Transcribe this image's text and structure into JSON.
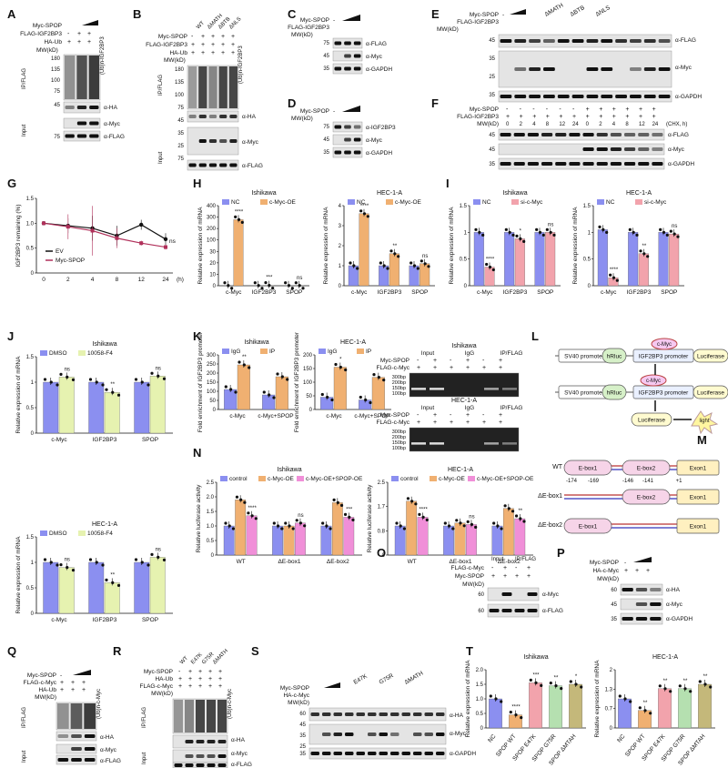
{
  "panels": {
    "A": {
      "letter": "A",
      "rows": [
        "Myc-SPOP",
        "FLAG-IGF2BP3",
        "HA-Ub"
      ],
      "lanes": [
        [
          "-",
          "+",
          "+"
        ],
        [
          "+",
          "+",
          "+"
        ]
      ],
      "mw": [
        "180",
        "135",
        "100",
        "75",
        "45",
        "75"
      ],
      "side": [
        "IP/FLAG",
        "Input"
      ],
      "bands": [
        "(Ub)n-IGF2BP3",
        "α-HA",
        "α-Myc",
        "α-FLAG"
      ],
      "mwhead": "MW(kD)"
    },
    "B": {
      "letter": "B",
      "rows": [
        "Myc-SPOP",
        "FLAG-IGF2BP3",
        "HA-Ub"
      ],
      "variants": [
        "WT",
        "ΔMATH",
        "ΔBTB",
        "ΔNLS"
      ],
      "lanes": [
        [
          "-",
          "+",
          "+",
          "+",
          "+"
        ],
        [
          "+",
          "+",
          "+",
          "+",
          "+"
        ],
        [
          "+",
          "+",
          "+",
          "+",
          "+"
        ]
      ],
      "mw": [
        "180",
        "135",
        "100",
        "75",
        "45",
        "35",
        "25",
        "75"
      ],
      "side": [
        "IP/FLAG",
        "Input"
      ],
      "bands": [
        "(Ub)n-IGF2BP3",
        "α-HA",
        "α-Myc",
        "α-FLAG"
      ],
      "mwhead": "MW(kD)"
    },
    "C": {
      "letter": "C",
      "rows": [
        "Myc-SPOP",
        "FLAG-IGF2BP3"
      ],
      "mw": [
        "75",
        "45",
        "35"
      ],
      "bands": [
        "α-FLAG",
        "α-Myc",
        "α-GAPDH"
      ],
      "mwhead": "MW(kD)",
      "dash": "-"
    },
    "D": {
      "letter": "D",
      "rows": [
        "Myc-SPOP"
      ],
      "mw": [
        "75",
        "45",
        "35"
      ],
      "bands": [
        "α-IGF2BP3",
        "α-Myc",
        "α-GAPDH"
      ],
      "mwhead": "MW(kD)",
      "dash": "-"
    },
    "E": {
      "letter": "E",
      "rows": [
        "Myc-SPOP",
        "FLAG-IGF2BP3"
      ],
      "variants": [
        "ΔMATH",
        "ΔBTB",
        "ΔNLS"
      ],
      "mw": [
        "45",
        "35",
        "25",
        "35"
      ],
      "bands": [
        "α-FLAG",
        "α-Myc",
        "α-GAPDH"
      ],
      "mwhead": "MW(kD)",
      "dash": "-"
    },
    "F": {
      "letter": "F",
      "rows": [
        "Myc-SPOP",
        "FLAG-IGF2BP3",
        "MW(kD)"
      ],
      "times": [
        "0",
        "2",
        "4",
        "8",
        "12",
        "24",
        "0",
        "2",
        "4",
        "8",
        "12",
        "24"
      ],
      "chx": "(CHX, h)",
      "mw": [
        "45",
        "45",
        "35"
      ],
      "bands": [
        "α-FLAG",
        "α-Myc",
        "α-GAPDH"
      ]
    },
    "G": {
      "letter": "G",
      "ylabel": "IGF2BP3 remaining (%)",
      "xunit": "(h)",
      "ns": "ns"
    },
    "H": {
      "letter": "H"
    },
    "I": {
      "letter": "I"
    },
    "J": {
      "letter": "J"
    },
    "K": {
      "letter": "K",
      "gel_rows": [
        "Myc-SPOP",
        "FLAG-c-Myc"
      ],
      "gel_heads": [
        "Input",
        "IgG",
        "IP/FLAG"
      ],
      "gel_mw": [
        "300bp",
        "200bp",
        "150bp",
        "100bp"
      ],
      "gel_titles": [
        "Ishikawa",
        "HEC-1-A"
      ]
    },
    "L": {
      "letter": "L",
      "boxes": [
        "SV40 promoter",
        "hRluc",
        "IGF2BP3 promoter",
        "Luciferase",
        "SV40 promoter",
        "hRluc",
        "IGF2BP3 promoter",
        "Luciferase",
        "Luciferase"
      ],
      "cmyc": "c-Myc",
      "light": "light"
    },
    "M": {
      "letter": "M",
      "rows": [
        "WT",
        "ΔE-box1",
        "ΔE-box2"
      ],
      "boxes": [
        "E-box1",
        "E-box2",
        "Exon1"
      ],
      "positions": [
        "-174",
        "-169",
        "-146",
        "-141",
        "+1"
      ]
    },
    "N": {
      "letter": "N"
    },
    "O": {
      "letter": "O",
      "rows": [
        "FLAG-c-Myc",
        "Myc-SPOP",
        "MW(kD)"
      ],
      "heads": [
        "Input",
        "IP/FLAG"
      ],
      "lanes": [
        [
          "-",
          "+",
          "-",
          "+"
        ],
        [
          "+",
          "+",
          "+",
          "+"
        ]
      ],
      "mw": [
        "60",
        "60"
      ],
      "bands": [
        "α-Myc",
        "α-FLAG"
      ]
    },
    "P": {
      "letter": "P",
      "rows": [
        "Myc-SPOP",
        "HA-c-Myc",
        "MW(kD)"
      ],
      "mw": [
        "60",
        "45",
        "35"
      ],
      "bands": [
        "α-HA",
        "α-Myc",
        "α-GAPDH"
      ],
      "dash": "-"
    },
    "Q": {
      "letter": "Q",
      "rows": [
        "Myc-SPOP",
        "FLAG-c-Myc",
        "HA-Ub",
        "MW(kD)"
      ],
      "mw": [
        "180",
        "135",
        "100",
        "75",
        "45",
        "60"
      ],
      "side": [
        "IP/FLAG",
        "Input"
      ],
      "bands": [
        "(Ub)n-c-Myc",
        "α-HA",
        "α-Myc",
        "α-FLAG"
      ],
      "dash": "-"
    },
    "R": {
      "letter": "R",
      "rows": [
        "Myc-SPOP",
        "HA-Ub",
        "FLAG-c-Myc",
        "MW(kD)"
      ],
      "variants": [
        "WT",
        "E47K",
        "G75R",
        "ΔMATH"
      ],
      "mw": [
        "180",
        "135",
        "100",
        "75",
        "45",
        "35",
        "25",
        "60"
      ],
      "side": [
        "IP/FLAG",
        "Input"
      ],
      "bands": [
        "(Ub)n-c-Myc",
        "α-HA",
        "α-Myc",
        "α-FLAG"
      ]
    },
    "S": {
      "letter": "S",
      "rows": [
        "Myc-SPOP",
        "HA-c-Myc",
        "MW(kD)"
      ],
      "variants": [
        "E47K",
        "G75R",
        "ΔMATH"
      ],
      "mw": [
        "60",
        "45",
        "35",
        "25",
        "35"
      ],
      "bands": [
        "α-HA",
        "α-Myc",
        "α-GAPDH"
      ]
    },
    "T": {
      "letter": "T"
    }
  },
  "chart_data": [
    {
      "id": "G",
      "type": "line",
      "x": [
        0,
        2,
        4,
        8,
        12,
        24
      ],
      "xlabel": "(h)",
      "ylabel": "IGF2BP3 remaining (%)",
      "ylim": [
        0,
        1.5
      ],
      "yticks": [
        "0",
        "0.5",
        "1.0",
        "1.5"
      ],
      "series": [
        {
          "name": "EV",
          "values": [
            1.0,
            0.95,
            0.9,
            0.75,
            0.97,
            0.68
          ],
          "err": [
            0,
            0.15,
            0.25,
            0.2,
            0.1,
            0.12
          ],
          "color": "#111111"
        },
        {
          "name": "Myc-SPOP",
          "values": [
            1.0,
            0.93,
            0.85,
            0.7,
            0.6,
            0.52
          ],
          "err": [
            0,
            0.25,
            0.5,
            0.2,
            0.05,
            0.05
          ],
          "color": "#b0305a"
        }
      ],
      "annot": "ns"
    },
    {
      "id": "H1",
      "type": "bar",
      "title": "Ishikawa",
      "ylabel": "Relative expression of mRNA",
      "categories": [
        "c-Myc",
        "IGF2BP3",
        "SPOP"
      ],
      "ylim": [
        0,
        400
      ],
      "yticks": [
        "0",
        "10",
        "20",
        "30",
        "100",
        "200",
        "300",
        "400"
      ],
      "series": [
        {
          "name": "NC",
          "values": [
            1.0,
            1.0,
            1.0
          ],
          "color": "#8b8ff0"
        },
        {
          "name": "c-Myc-OE",
          "values": [
            330,
            1.6,
            1.0
          ],
          "color": "#f0b071"
        }
      ],
      "sig": [
        "****",
        "***",
        "ns"
      ]
    },
    {
      "id": "H2",
      "type": "bar",
      "title": "HEC-1-A",
      "ylabel": "Relative expression of mRNA",
      "categories": [
        "c-Myc",
        "IGF2BP3",
        "SPOP"
      ],
      "ylim": [
        0,
        4
      ],
      "series": [
        {
          "name": "NC",
          "values": [
            1.0,
            1.0,
            1.0
          ],
          "color": "#8b8ff0"
        },
        {
          "name": "c-Myc-OE",
          "values": [
            3.6,
            1.6,
            1.1
          ],
          "color": "#f0b071"
        }
      ],
      "sig": [
        "****",
        "**",
        "ns"
      ]
    },
    {
      "id": "I1",
      "type": "bar",
      "title": "Ishikawa",
      "ylabel": "Relative expression of mRNA",
      "categories": [
        "c-Myc",
        "IGF2BP3",
        "SPOP"
      ],
      "ylim": [
        0,
        1.5
      ],
      "series": [
        {
          "name": "NC",
          "values": [
            1.0,
            1.0,
            1.0
          ],
          "color": "#8b8ff0"
        },
        {
          "name": "si-c-Myc",
          "values": [
            0.35,
            0.88,
            1.0
          ],
          "color": "#f2a3ac"
        }
      ],
      "sig": [
        "****",
        "*",
        "ns"
      ]
    },
    {
      "id": "I2",
      "type": "bar",
      "title": "HEC-1-A",
      "ylabel": "Relative expression of mRNA",
      "categories": [
        "c-Myc",
        "IGF2BP3",
        "SPOP"
      ],
      "ylim": [
        0,
        1.5
      ],
      "series": [
        {
          "name": "NC",
          "values": [
            1.05,
            1.0,
            1.0
          ],
          "color": "#8b8ff0"
        },
        {
          "name": "si-c-Myc",
          "values": [
            0.15,
            0.6,
            0.97
          ],
          "color": "#f2a3ac"
        }
      ],
      "sig": [
        "****",
        "**",
        "ns"
      ]
    },
    {
      "id": "J1",
      "type": "bar",
      "title": "Ishikawa",
      "ylabel": "Relative expression of mRNA",
      "categories": [
        "c-Myc",
        "IGF2BP3",
        "SPOP"
      ],
      "ylim": [
        0,
        1.5
      ],
      "series": [
        {
          "name": "DMSO",
          "values": [
            1.0,
            1.0,
            1.0
          ],
          "color": "#8b8ff0"
        },
        {
          "name": "10058-F4",
          "values": [
            1.1,
            0.8,
            1.12
          ],
          "color": "#e6f2b0"
        }
      ],
      "sig": [
        "ns",
        "**",
        "ns"
      ]
    },
    {
      "id": "J2",
      "type": "bar",
      "title": "HEC-1-A",
      "ylabel": "Relative expression of mRNA",
      "categories": [
        "c-Myc",
        "IGF2BP3",
        "SPOP"
      ],
      "ylim": [
        0,
        1.5
      ],
      "series": [
        {
          "name": "DMSO",
          "values": [
            1.0,
            1.0,
            1.0
          ],
          "color": "#8b8ff0"
        },
        {
          "name": "10058-F4",
          "values": [
            0.9,
            0.6,
            1.1
          ],
          "color": "#e6f2b0"
        }
      ],
      "sig": [
        "ns",
        "**",
        "ns"
      ]
    },
    {
      "id": "K1",
      "type": "bar",
      "title": "Ishikawa",
      "ylabel": "Fold enrichment of IGF2BP3 promoter",
      "categories": [
        "c-Myc",
        "c-Myc+SPOP"
      ],
      "ylim": [
        0,
        300
      ],
      "yticks": [
        "0",
        "50",
        "100",
        "150",
        "200",
        "250",
        "300"
      ],
      "series": [
        {
          "name": "IgG",
          "values": [
            110,
            80
          ],
          "color": "#8b8ff0"
        },
        {
          "name": "IP",
          "values": [
            245,
            180
          ],
          "color": "#f0b071"
        }
      ],
      "sig": [
        "**"
      ]
    },
    {
      "id": "K2",
      "type": "bar",
      "title": "HEC-1-A",
      "ylabel": "Fold enrichment of IGF2BP3 promoter",
      "categories": [
        "c-Myc",
        "c-Myc+SPOP"
      ],
      "ylim": [
        0,
        200
      ],
      "yticks": [
        "0",
        "50",
        "100",
        "150",
        "200"
      ],
      "series": [
        {
          "name": "IgG",
          "values": [
            45,
            35
          ],
          "color": "#8b8ff0"
        },
        {
          "name": "IP",
          "values": [
            155,
            118
          ],
          "color": "#f0b071"
        }
      ],
      "sig": [
        "*"
      ]
    },
    {
      "id": "N1",
      "type": "bar",
      "title": "Ishikawa",
      "ylabel": "Relative luciferase activity",
      "categories": [
        "WT",
        "ΔE-box1",
        "ΔE-box2"
      ],
      "ylim": [
        0,
        2.5
      ],
      "yticks": [
        "0",
        "0.5",
        "1.0",
        "1.5",
        "2.0",
        "2.5"
      ],
      "series": [
        {
          "name": "control",
          "values": [
            1.0,
            1.0,
            1.0
          ],
          "color": "#8b8ff0"
        },
        {
          "name": "c-Myc-OE",
          "values": [
            1.9,
            1.0,
            1.8
          ],
          "color": "#f0b071"
        },
        {
          "name": "c-Myc-OE+SPOP-OE",
          "values": [
            1.35,
            1.1,
            1.3
          ],
          "color": "#f08fd8"
        }
      ],
      "sig": [
        "****",
        "ns",
        "***"
      ]
    },
    {
      "id": "N2",
      "type": "bar",
      "title": "HEC-1-A",
      "ylabel": "Relative luciferase activity",
      "categories": [
        "WT",
        "ΔE-box1",
        "ΔE-box2"
      ],
      "ylim": [
        0,
        2.5
      ],
      "series": [
        {
          "name": "control",
          "values": [
            1.0,
            1.0,
            1.0
          ],
          "color": "#8b8ff0"
        },
        {
          "name": "c-Myc-OE",
          "values": [
            1.85,
            1.1,
            1.6
          ],
          "color": "#f0b071"
        },
        {
          "name": "c-Myc-OE+SPOP-OE",
          "values": [
            1.3,
            1.05,
            1.25
          ],
          "color": "#f08fd8"
        }
      ],
      "sig": [
        "****",
        "ns",
        "**"
      ]
    },
    {
      "id": "T1",
      "type": "bar",
      "title": "Ishikawa",
      "ylabel": "Relative expression of mRNA",
      "categories": [
        "NC",
        "SPOP WT",
        "SPOP E47K",
        "SPOP G75R",
        "SPOP ΔMTAH"
      ],
      "ylim": [
        0,
        2.0
      ],
      "yticks": [
        "0",
        "0.5",
        "1.0",
        "1.5",
        "2.0"
      ],
      "series": [
        {
          "name": "",
          "values": [
            1.0,
            0.45,
            1.55,
            1.45,
            1.5
          ],
          "colors": [
            "#8b8ff0",
            "#f0b071",
            "#f2a3ac",
            "#b5e0b0",
            "#c4b87a"
          ]
        }
      ],
      "sig": [
        "",
        "****",
        "***",
        "**",
        "*"
      ]
    },
    {
      "id": "T2",
      "type": "bar",
      "title": "HEC-1-A",
      "ylabel": "Relative expression of mRNA",
      "categories": [
        "NC",
        "SPOP WT",
        "SPOP E47K",
        "SPOP G75R",
        "SPOP ΔMTAH"
      ],
      "ylim": [
        0,
        2.0
      ],
      "series": [
        {
          "name": "",
          "values": [
            1.0,
            0.6,
            1.35,
            1.35,
            1.5
          ],
          "colors": [
            "#8b8ff0",
            "#f0b071",
            "#f2a3ac",
            "#b5e0b0",
            "#c4b87a"
          ]
        }
      ],
      "sig": [
        "",
        "**",
        "**",
        "**",
        "**"
      ]
    }
  ]
}
